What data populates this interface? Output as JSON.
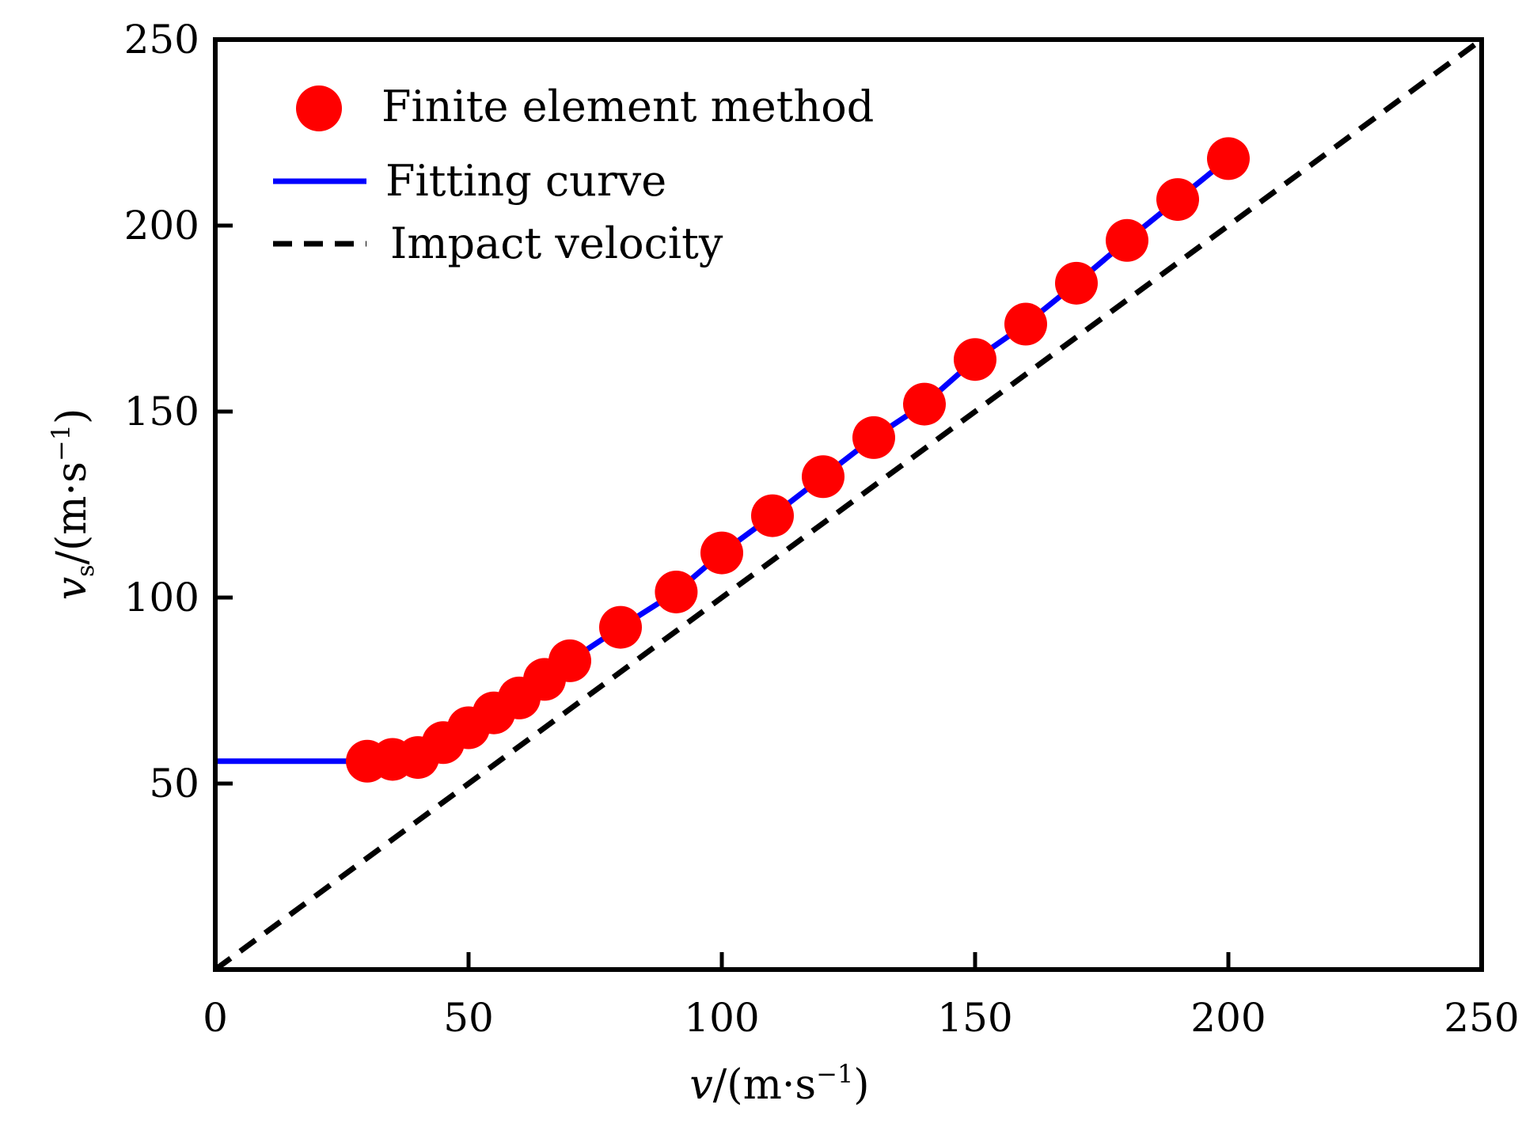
{
  "chart_data": {
    "type": "scatter",
    "title": "",
    "xlabel": "v/(m·s⁻¹)",
    "ylabel": "vs/(m·s⁻¹)",
    "xlabel_parts": {
      "var": "v",
      "unit_open": "/(m·s",
      "sup": "−1",
      "unit_close": ")"
    },
    "ylabel_parts": {
      "var": "v",
      "sub": "s",
      "unit_open": "/(m·s",
      "sup": "−1",
      "unit_close": ")"
    },
    "xlim": [
      0,
      250
    ],
    "ylim": [
      0,
      250
    ],
    "xticks": [
      0,
      50,
      100,
      150,
      200,
      250
    ],
    "yticks": [
      50,
      100,
      150,
      200,
      250
    ],
    "grid": false,
    "legend_position": "top-left",
    "series": [
      {
        "name": "Finite element method",
        "kind": "scatter",
        "color": "#ff0000",
        "x": [
          30,
          35,
          40,
          45,
          50,
          55,
          60,
          65,
          70,
          80,
          91,
          100,
          110,
          120,
          130,
          140,
          150,
          160,
          170,
          180,
          190,
          200
        ],
        "y": [
          56,
          56.5,
          57,
          61,
          65,
          69,
          73,
          78,
          83,
          92,
          101.5,
          112,
          122,
          132.5,
          143,
          152,
          164,
          173.5,
          184.5,
          196,
          207,
          218
        ]
      },
      {
        "name": "Fitting curve",
        "kind": "line",
        "color": "#0000ff",
        "x": [
          0,
          30,
          35,
          40,
          45,
          50,
          55,
          60,
          65,
          70,
          80,
          91,
          100,
          110,
          120,
          130,
          140,
          150,
          160,
          170,
          180,
          190,
          200
        ],
        "y": [
          56,
          56,
          56.5,
          57,
          61,
          65,
          69,
          73,
          78,
          83,
          92,
          101.5,
          112,
          122,
          132.5,
          143,
          152,
          164,
          173.5,
          184.5,
          196,
          207,
          218
        ]
      },
      {
        "name": "Impact velocity",
        "kind": "dashed-line",
        "color": "#000000",
        "x": [
          0,
          250
        ],
        "y": [
          0,
          250
        ]
      }
    ]
  }
}
